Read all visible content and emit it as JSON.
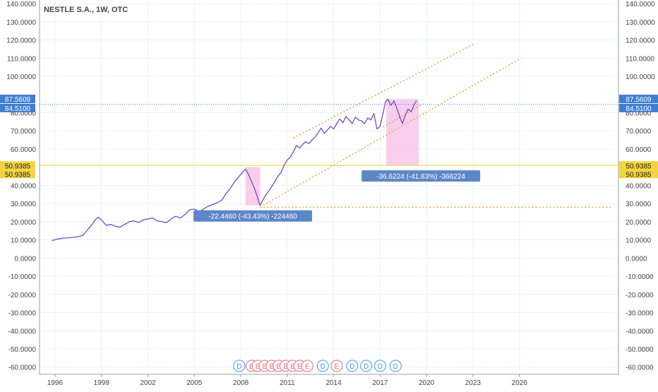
{
  "header": {
    "title": "NESTLE S.A., 1W, OTC"
  },
  "colors": {
    "price_line": "#6a4fc2",
    "grid": "#eef1f4",
    "axis_text": "#444444",
    "blue_label": "#3f7fd0",
    "yellow_level": "#f3d43f",
    "channel": "#ef9d3a",
    "drawdown_fill": "#f8c6ea",
    "callout_bg": "#5e86c7",
    "event_dividend": "#3d9be9",
    "event_earnings": "#e7697d"
  },
  "chart_data": {
    "type": "line",
    "title": "NESTLE S.A., 1W, OTC",
    "xlabel": "",
    "ylabel": "",
    "xlim": [
      1995.0,
      2032.4
    ],
    "ylim": [
      -64,
      142
    ],
    "grid": true,
    "legend": "none",
    "x_ticks": [
      {
        "label": "1996",
        "value": 1996
      },
      {
        "label": "1999",
        "value": 1999
      },
      {
        "label": "2002",
        "value": 2002
      },
      {
        "label": "2005",
        "value": 2005
      },
      {
        "label": "2008",
        "value": 2008
      },
      {
        "label": "2011",
        "value": 2011
      },
      {
        "label": "2014",
        "value": 2014
      },
      {
        "label": "2017",
        "value": 2017
      },
      {
        "label": "2020",
        "value": 2020
      },
      {
        "label": "2023",
        "value": 2023
      },
      {
        "label": "2026",
        "value": 2026
      }
    ],
    "y_ticks": [
      {
        "label": "140.0000",
        "value": 140
      },
      {
        "label": "130.0000",
        "value": 130
      },
      {
        "label": "120.0000",
        "value": 120
      },
      {
        "label": "110.0000",
        "value": 110
      },
      {
        "label": "100.0000",
        "value": 100
      },
      {
        "label": "80.0000",
        "value": 80
      },
      {
        "label": "70.0000",
        "value": 70
      },
      {
        "label": "60.0000",
        "value": 60
      },
      {
        "label": "40.0000",
        "value": 40
      },
      {
        "label": "30.0000",
        "value": 30
      },
      {
        "label": "20.0000",
        "value": 20
      },
      {
        "label": "10.0000",
        "value": 10
      },
      {
        "label": "0.0000",
        "value": 0
      },
      {
        "label": "-10.0000",
        "value": -10
      },
      {
        "label": "-20.0000",
        "value": -20
      },
      {
        "label": "-30.0000",
        "value": -30
      },
      {
        "label": "-40.0000",
        "value": -40
      },
      {
        "label": "-50.0000",
        "value": -50
      },
      {
        "label": "-60.0000",
        "value": -60
      }
    ],
    "series": [
      {
        "points": [
          [
            1995.8,
            9.6
          ],
          [
            1996.2,
            10.5
          ],
          [
            1996.6,
            11.0
          ],
          [
            1997.0,
            11.2
          ],
          [
            1997.4,
            11.6
          ],
          [
            1997.8,
            12.5
          ],
          [
            1998.1,
            15.5
          ],
          [
            1998.4,
            18.5
          ],
          [
            1998.6,
            21.0
          ],
          [
            1998.8,
            22.5
          ],
          [
            1999.0,
            21.0
          ],
          [
            1999.3,
            18.0
          ],
          [
            1999.6,
            18.5
          ],
          [
            1999.9,
            17.5
          ],
          [
            2000.2,
            17.0
          ],
          [
            2000.5,
            18.5
          ],
          [
            2000.8,
            20.0
          ],
          [
            2001.1,
            20.5
          ],
          [
            2001.4,
            19.5
          ],
          [
            2001.7,
            21.0
          ],
          [
            2002.0,
            21.5
          ],
          [
            2002.3,
            22.0
          ],
          [
            2002.6,
            20.5
          ],
          [
            2002.9,
            20.0
          ],
          [
            2003.2,
            19.5
          ],
          [
            2003.5,
            21.5
          ],
          [
            2003.8,
            23.0
          ],
          [
            2004.1,
            22.0
          ],
          [
            2004.4,
            24.0
          ],
          [
            2004.7,
            26.5
          ],
          [
            2005.0,
            27.0
          ],
          [
            2005.3,
            25.5
          ],
          [
            2005.6,
            27.0
          ],
          [
            2005.9,
            28.5
          ],
          [
            2006.2,
            29.5
          ],
          [
            2006.5,
            30.5
          ],
          [
            2006.8,
            32.0
          ],
          [
            2007.0,
            35.0
          ],
          [
            2007.3,
            38.0
          ],
          [
            2007.6,
            42.0
          ],
          [
            2007.9,
            45.0
          ],
          [
            2008.1,
            47.0
          ],
          [
            2008.3,
            49.0
          ],
          [
            2008.5,
            46.0
          ],
          [
            2008.7,
            42.0
          ],
          [
            2008.9,
            38.0
          ],
          [
            2009.1,
            33.0
          ],
          [
            2009.25,
            29.0
          ],
          [
            2009.4,
            31.5
          ],
          [
            2009.6,
            34.5
          ],
          [
            2009.9,
            38.0
          ],
          [
            2010.2,
            42.0
          ],
          [
            2010.4,
            45.0
          ],
          [
            2010.6,
            47.0
          ],
          [
            2010.8,
            51.0
          ],
          [
            2011.0,
            54.0
          ],
          [
            2011.2,
            55.5
          ],
          [
            2011.4,
            58.5
          ],
          [
            2011.6,
            62.0
          ],
          [
            2011.8,
            60.5
          ],
          [
            2012.0,
            62.5
          ],
          [
            2012.2,
            64.0
          ],
          [
            2012.4,
            63.0
          ],
          [
            2012.6,
            65.0
          ],
          [
            2012.8,
            66.5
          ],
          [
            2013.0,
            69.0
          ],
          [
            2013.2,
            71.5
          ],
          [
            2013.4,
            68.5
          ],
          [
            2013.6,
            70.5
          ],
          [
            2013.8,
            72.5
          ],
          [
            2014.0,
            71.0
          ],
          [
            2014.2,
            74.0
          ],
          [
            2014.4,
            76.5
          ],
          [
            2014.6,
            74.5
          ],
          [
            2014.8,
            78.0
          ],
          [
            2015.0,
            76.0
          ],
          [
            2015.2,
            74.0
          ],
          [
            2015.4,
            77.5
          ],
          [
            2015.6,
            76.0
          ],
          [
            2015.8,
            75.5
          ],
          [
            2016.0,
            74.0
          ],
          [
            2016.2,
            77.0
          ],
          [
            2016.4,
            76.0
          ],
          [
            2016.6,
            79.5
          ],
          [
            2016.8,
            71.0
          ],
          [
            2017.0,
            72.5
          ],
          [
            2017.2,
            80.0
          ],
          [
            2017.35,
            86.0
          ],
          [
            2017.5,
            87.5
          ],
          [
            2017.7,
            84.0
          ],
          [
            2017.9,
            86.5
          ],
          [
            2018.1,
            82.0
          ],
          [
            2018.3,
            77.0
          ],
          [
            2018.45,
            74.0
          ],
          [
            2018.6,
            78.0
          ],
          [
            2018.8,
            82.0
          ],
          [
            2019.0,
            80.5
          ],
          [
            2019.2,
            84.5
          ],
          [
            2019.35,
            86.5
          ]
        ]
      }
    ],
    "horizontal_levels": [
      {
        "value": 87.5609,
        "label": "87.5609",
        "style": "solid-blue"
      },
      {
        "value": 84.51,
        "label": "84.5100",
        "style": "dotted-blue"
      },
      {
        "value": 50.9385,
        "label": "50.9385",
        "style": "solid-yellow"
      }
    ],
    "trend_channel": {
      "upper": [
        [
          2011.4,
          66
        ],
        [
          2023.1,
          118
        ]
      ],
      "lower_main": [
        [
          2009.25,
          28
        ],
        [
          2026.1,
          110
        ]
      ],
      "inner": [
        [
          2017.2,
          72
        ],
        [
          2019.8,
          85
        ]
      ],
      "support": [
        [
          2009.25,
          28
        ],
        [
          2031.9,
          28
        ]
      ]
    },
    "drawdowns": [
      {
        "x_start": 2008.3,
        "x_end": 2009.25,
        "y_top": 50,
        "y_bottom": 29,
        "callout": "-22.4460 (-43.43%) -224460"
      },
      {
        "x_start": 2017.4,
        "x_end": 2019.5,
        "y_top": 87.5,
        "y_bottom": 51,
        "callout": "-36.6224 (-41.83%) -366224"
      }
    ],
    "events": [
      {
        "x": 2007.9,
        "label": "D",
        "kind": "dividend"
      },
      {
        "x": 2008.7,
        "label": "E",
        "kind": "earnings"
      },
      {
        "x": 2009.1,
        "label": "E",
        "kind": "earnings"
      },
      {
        "x": 2009.55,
        "label": "E",
        "kind": "earnings"
      },
      {
        "x": 2010.0,
        "label": "E",
        "kind": "earnings"
      },
      {
        "x": 2010.45,
        "label": "E",
        "kind": "earnings"
      },
      {
        "x": 2010.9,
        "label": "E",
        "kind": "earnings"
      },
      {
        "x": 2011.35,
        "label": "E",
        "kind": "earnings"
      },
      {
        "x": 2011.8,
        "label": "E",
        "kind": "earnings"
      },
      {
        "x": 2012.3,
        "label": "E",
        "kind": "earnings"
      },
      {
        "x": 2013.3,
        "label": "D",
        "kind": "dividend"
      },
      {
        "x": 2014.2,
        "label": "E",
        "kind": "earnings"
      },
      {
        "x": 2015.2,
        "label": "D",
        "kind": "dividend"
      },
      {
        "x": 2016.1,
        "label": "D",
        "kind": "dividend"
      },
      {
        "x": 2017.0,
        "label": "D",
        "kind": "dividend"
      },
      {
        "x": 2018.0,
        "label": "D",
        "kind": "dividend"
      }
    ]
  }
}
